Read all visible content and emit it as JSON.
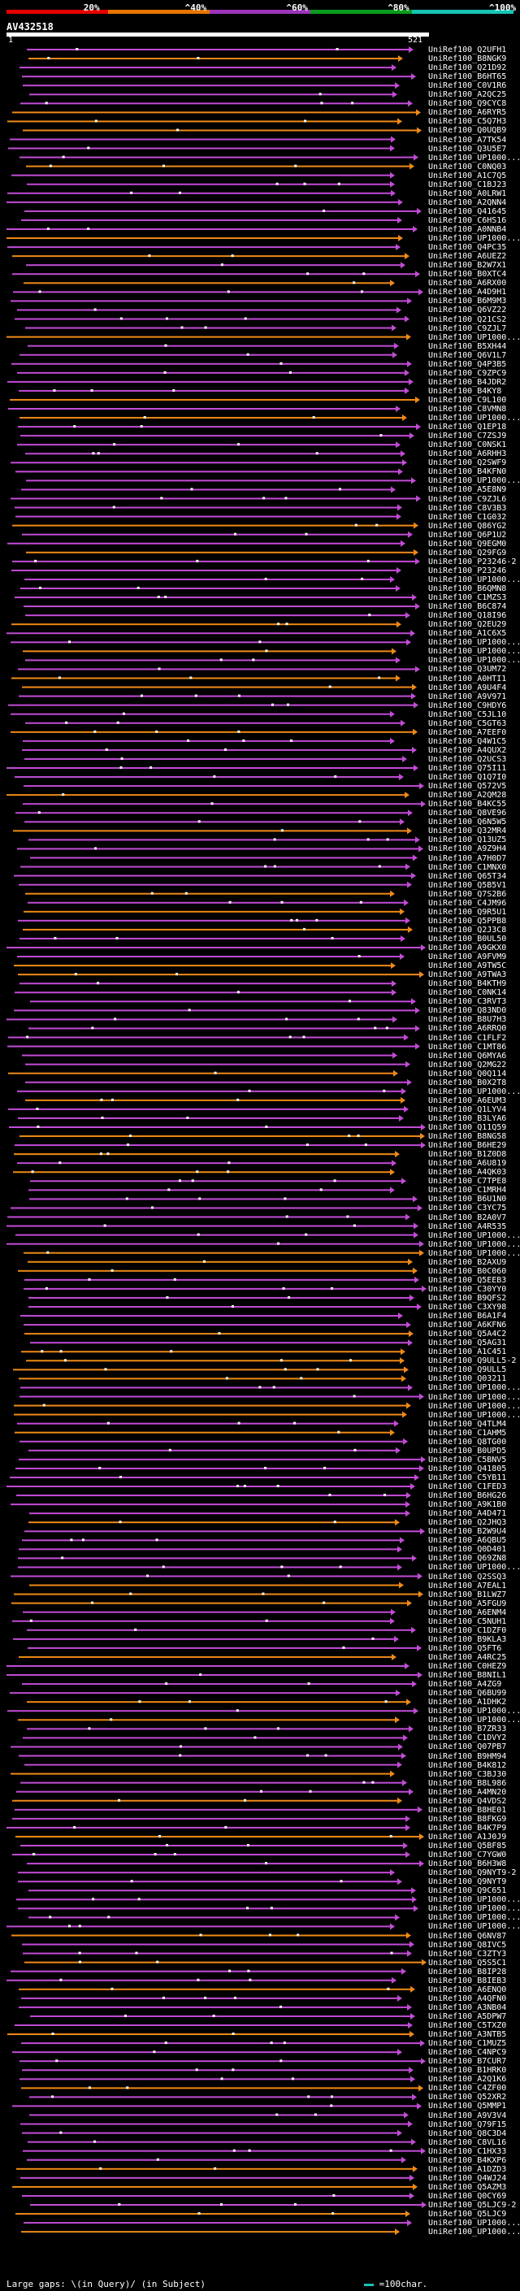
{
  "legend": {
    "colors": [
      "#e60000",
      "#e67500",
      "#9b36b8",
      "#0a9b1e",
      "#17c4b4"
    ],
    "labels": [
      "20%",
      "^40%",
      "^60%",
      "^80%",
      "^100%"
    ]
  },
  "query": {
    "id": "AV432518",
    "start": "1",
    "end": "521"
  },
  "footer": {
    "gaps_text": "Large gaps: \\(in Query)/ (in Subject)",
    "scale_text": "=100char."
  },
  "hits": [
    "UniRef100_Q2UFH1",
    "UniRef100_B8NGK9",
    "UniRef100_Q21D92",
    "UniRef100_B6HT65",
    "UniRef100_C0V1R6",
    "UniRef100_A2QC25",
    "UniRef100_Q9CYC8",
    "UniRef100_A6RYR5",
    "UniRef100_C5Q7H3",
    "UniRef100_Q0UQB9",
    "UniRef100_A7TK54",
    "UniRef100_Q3U5E7",
    "UniRef100_UP1000...",
    "UniRef100_C0NQ03",
    "UniRef100_A1C7Q5",
    "UniRef100_C1BJ23",
    "UniRef100_A0LRW1",
    "UniRef100_A2QNN4",
    "UniRef100_Q41645",
    "UniRef100_C6HS16",
    "UniRef100_A0NNB4",
    "UniRef100_UP1000...",
    "UniRef100_Q4PC35",
    "UniRef100_A6UEZ2",
    "UniRef100_B2W7X1",
    "UniRef100_B0XTC4",
    "UniRef100_A6RX00",
    "UniRef100_A4D9H1",
    "UniRef100_B6M9M3",
    "UniRef100_Q6VZ22",
    "UniRef100_Q21CS2",
    "UniRef100_C9ZJL7",
    "UniRef100_UP1000...",
    "UniRef100_B5XH44",
    "UniRef100_Q6V1L7",
    "UniRef100_Q4P3B5",
    "UniRef100_C9ZPC9",
    "UniRef100_B4JDR2",
    "UniRef100_B4KY8",
    "UniRef100_C9L100",
    "UniRef100_C8VMN8",
    "UniRef100_UP1000...",
    "UniRef100_Q1EP18",
    "UniRef100_C7ZSJ9",
    "UniRef100_C0NSK1",
    "UniRef100_A6RHH3",
    "UniRef100_Q2SWF9",
    "UniRef100_B4KFN0",
    "UniRef100_UP1000...",
    "UniRef100_A5E8N9",
    "UniRef100_C9ZJL6",
    "UniRef100_C8V3B3",
    "UniRef100_C1G032",
    "UniRef100_Q86YG2",
    "UniRef100_Q6P1U2",
    "UniRef100_Q9EGM0",
    "UniRef100_Q29FG9",
    "UniRef100_P23246-2",
    "UniRef100_P23246",
    "UniRef100_UP1000...",
    "UniRef100_B6QMN8",
    "UniRef100_C1MZS3",
    "UniRef100_B6C874",
    "UniRef100_Q18I96",
    "UniRef100_Q2EU29",
    "UniRef100_A1C6X5",
    "UniRef100_UP1000...",
    "UniRef100_UP1000...",
    "UniRef100_UP1000...",
    "UniRef100_Q3UM72",
    "UniRef100_A0HTI1",
    "UniRef100_A9U4F4",
    "UniRef100_A9V971",
    "UniRef100_C9HDY6",
    "UniRef100_C5JL10",
    "UniRef100_C5GT63",
    "UniRef100_A7EEF0",
    "UniRef100_Q4W1C5",
    "UniRef100_A4QUX2",
    "UniRef100_Q2UCS3",
    "UniRef100_Q75I11",
    "UniRef100_Q1Q7I0",
    "UniRef100_Q572V5",
    "UniRef100_A2QM28",
    "UniRef100_B4KC55",
    "UniRef100_Q8VE96",
    "UniRef100_Q6N5W5",
    "UniRef100_Q32MR4",
    "UniRef100_Q13UZ5",
    "UniRef100_A9Z9H4",
    "UniRef100_A7H0D7",
    "UniRef100_C1MNX0",
    "UniRef100_Q65T34",
    "UniRef100_Q5B5V1",
    "UniRef100_Q7S2B6",
    "UniRef100_C4JM96",
    "UniRef100_Q9R5U1",
    "UniRef100_Q5PPB8",
    "UniRef100_Q2J3C8",
    "UniRef100_B0UL50",
    "UniRef100_A9GKX0",
    "UniRef100_A9FVM9",
    "UniRef100_A9TW5C",
    "UniRef100_A9TWA3",
    "UniRef100_B4KTH9",
    "UniRef100_C0NK14",
    "UniRef100_C3RVT3",
    "UniRef100_Q83ND0",
    "UniRef100_B8U7H3",
    "UniRef100_A6RRQ0",
    "UniRef100_C1FLF2",
    "UniRef100_C1MT86",
    "UniRef100_Q6MYA6",
    "UniRef100_Q2MG22",
    "UniRef100_Q0Q114",
    "UniRef100_B0X2T8",
    "UniRef100_UP1000...",
    "UniRef100_A6EUM3",
    "UniRef100_Q1LYV4",
    "UniRef100_B3LYA6",
    "UniRef100_Q11Q59",
    "UniRef100_B8NG58",
    "UniRef100_B6HE29",
    "UniRef100_B1Z0D8",
    "UniRef100_A6U819",
    "UniRef100_A4QK03",
    "UniRef100_C7TPE8",
    "UniRef100_C1MRH4",
    "UniRef100_B6U1N0",
    "UniRef100_C3YC75",
    "UniRef100_B2A0V7",
    "UniRef100_A4R535",
    "UniRef100_UP1000...",
    "UniRef100_UP1000...",
    "UniRef100_UP1000...",
    "UniRef100_B2AXU9",
    "UniRef100_B0C060",
    "UniRef100_Q5EEB3",
    "UniRef100_C30YY0",
    "UniRef100_B9QFS2",
    "UniRef100_C3XY98",
    "UniRef100_B6A1F4",
    "UniRef100_A6KFN6",
    "UniRef100_Q5A4C2",
    "UniRef100_Q5AG31",
    "UniRef100_A1C451",
    "UniRef100_Q9ULL5-2",
    "UniRef100_Q9ULL5",
    "UniRef100_Q03211",
    "UniRef100_UP1000...",
    "UniRef100_UP1000...",
    "UniRef100_UP1000...",
    "UniRef100_UP1000...",
    "UniRef100_Q4TLM4",
    "UniRef100_C1AHM5",
    "UniRef100_Q8TG00",
    "UniRef100_B0UPD5",
    "UniRef100_C5BNV5",
    "UniRef100_Q41805",
    "UniRef100_C5YB11",
    "UniRef100_C1FED3",
    "UniRef100_B6HG26",
    "UniRef100_A9K1B0",
    "UniRef100_A4D471",
    "UniRef100_Q2JHQ3",
    "UniRef100_B2W9U4",
    "UniRef100_A6QBU5",
    "UniRef100_Q0D401",
    "UniRef100_Q69ZN8",
    "UniRef100_UP1000...",
    "UniRef100_Q2SSQ3",
    "UniRef100_A7EAL1",
    "UniRef100_B1LWZ7",
    "UniRef100_A5FGU9",
    "UniRef100_A6ENM4",
    "UniRef100_C5NUH1",
    "UniRef100_C1DZF0",
    "UniRef100_B9KLA3",
    "UniRef100_Q5FT6",
    "UniRef100_A4RC25",
    "UniRef100_C0HEZ9",
    "UniRef100_B8NIL1",
    "UniRef100_A4ZG9",
    "UniRef100_Q6BU99",
    "UniRef100_A1DHK2",
    "UniRef100_UP1000...",
    "UniRef100_UP1000...",
    "UniRef100_B7ZR33",
    "UniRef100_C1DVY2",
    "UniRef100_Q07PB7",
    "UniRef100_B9HM94",
    "UniRef100_B4K812",
    "UniRef100_C3BJ30",
    "UniRef100_B8L986",
    "UniRef100_A4MN20",
    "UniRef100_Q4VDS2",
    "UniRef100_B8HE01",
    "UniRef100_B8FKG9",
    "UniRef100_B4K7P9",
    "UniRef100_A1J0J9",
    "UniRef100_Q5BF85",
    "UniRef100_C7YGW0",
    "UniRef100_B6H3W8",
    "UniRef100_Q9NYT9-2",
    "UniRef100_Q9NYT9",
    "UniRef100_Q9C651",
    "UniRef100_UP1000...",
    "UniRef100_UP1000...",
    "UniRef100_UP1000...",
    "UniRef100_UP1000...",
    "UniRef100_Q6NV87",
    "UniRef100_Q8IVC5",
    "UniRef100_C3ZTY3",
    "UniRef100_Q5S5C1",
    "UniRef100_B8IP28",
    "UniRef100_B8IEB3",
    "UniRef100_A6ENQ0",
    "UniRef100_A4QFN0",
    "UniRef100_A3NB04",
    "UniRef100_A5DPW7",
    "UniRef100_C5TXZ0",
    "UniRef100_A3NTB5",
    "UniRef100_C1MUZ5",
    "UniRef100_C4NPC9",
    "UniRef100_B7CUR7",
    "UniRef100_B1HRK0",
    "UniRef100_A2Q1K6",
    "UniRef100_C4ZF00",
    "UniRef100_Q52XR2",
    "UniRef100_Q5MMP1",
    "UniRef100_A9V3V4",
    "UniRef100_Q79F15",
    "UniRef100_Q8C3D4",
    "UniRef100_C8VL16",
    "UniRef100_C1HX33",
    "UniRef100_B4KXP6",
    "UniRef100_A1DZD3",
    "UniRef100_Q4WJ24",
    "UniRef100_Q5AZM3",
    "UniRef100_Q0CY69",
    "UniRef100_Q5LJC9-2",
    "UniRef100_Q5LJC9",
    "UniRef100_UP1000...",
    "UniRef100_UP1000..."
  ]
}
